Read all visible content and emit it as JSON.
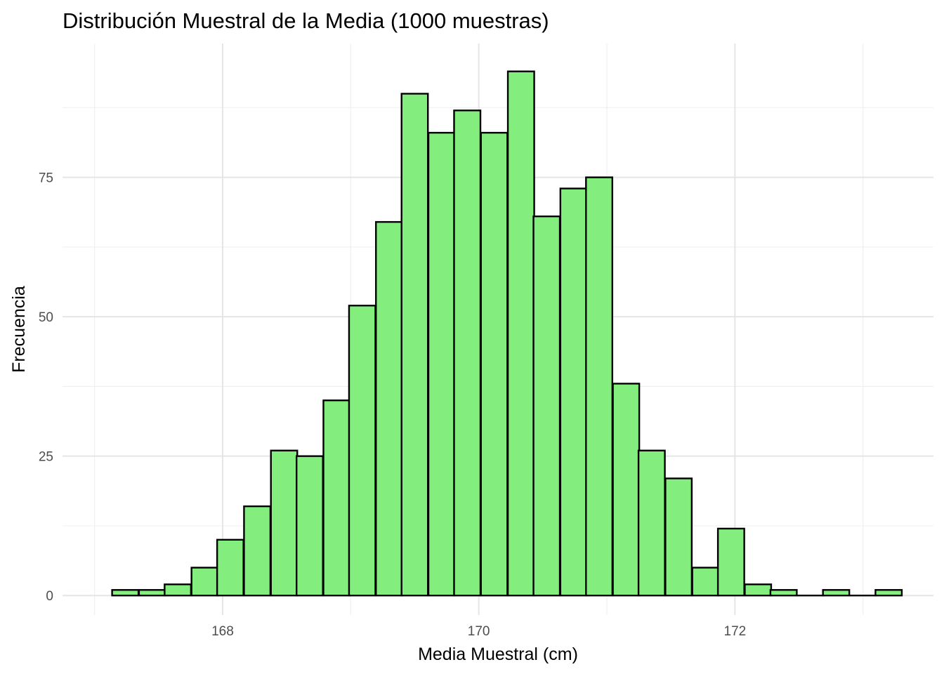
{
  "chart_data": {
    "type": "bar",
    "title": "Distribución Muestral de la Media (1000 muestras)",
    "xlabel": "Media Muestral (cm)",
    "ylabel": "Frecuencia",
    "bar_fill": "#83ED7E",
    "bar_stroke": "#000000",
    "grid": true,
    "xlim": [
      166.75,
      173.55
    ],
    "ylim": [
      -3.5,
      99
    ],
    "x_ticks": [
      168,
      170,
      172
    ],
    "x_tick_labels": [
      "168",
      "170",
      "172"
    ],
    "x_minor_ticks": [
      167,
      169,
      171,
      173
    ],
    "y_ticks": [
      0,
      25,
      50,
      75
    ],
    "y_tick_labels": [
      "0",
      "25",
      "50",
      "75"
    ],
    "y_minor_ticks": [
      12.5,
      37.5,
      62.5,
      87.5
    ],
    "bin_width": 0.2057,
    "bin_centers": [
      167.24,
      167.45,
      167.65,
      167.86,
      168.06,
      168.27,
      168.48,
      168.68,
      168.89,
      169.09,
      169.3,
      169.5,
      169.71,
      169.91,
      170.12,
      170.33,
      170.53,
      170.74,
      170.94,
      171.15,
      171.35,
      171.56,
      171.77,
      171.97,
      172.18,
      172.38,
      172.59,
      172.79,
      173.0,
      173.2
    ],
    "values": [
      1,
      1,
      2,
      5,
      10,
      16,
      26,
      25,
      35,
      52,
      67,
      90,
      83,
      87,
      83,
      94,
      68,
      73,
      75,
      38,
      26,
      21,
      5,
      12,
      2,
      1,
      0,
      1,
      0,
      1
    ]
  }
}
